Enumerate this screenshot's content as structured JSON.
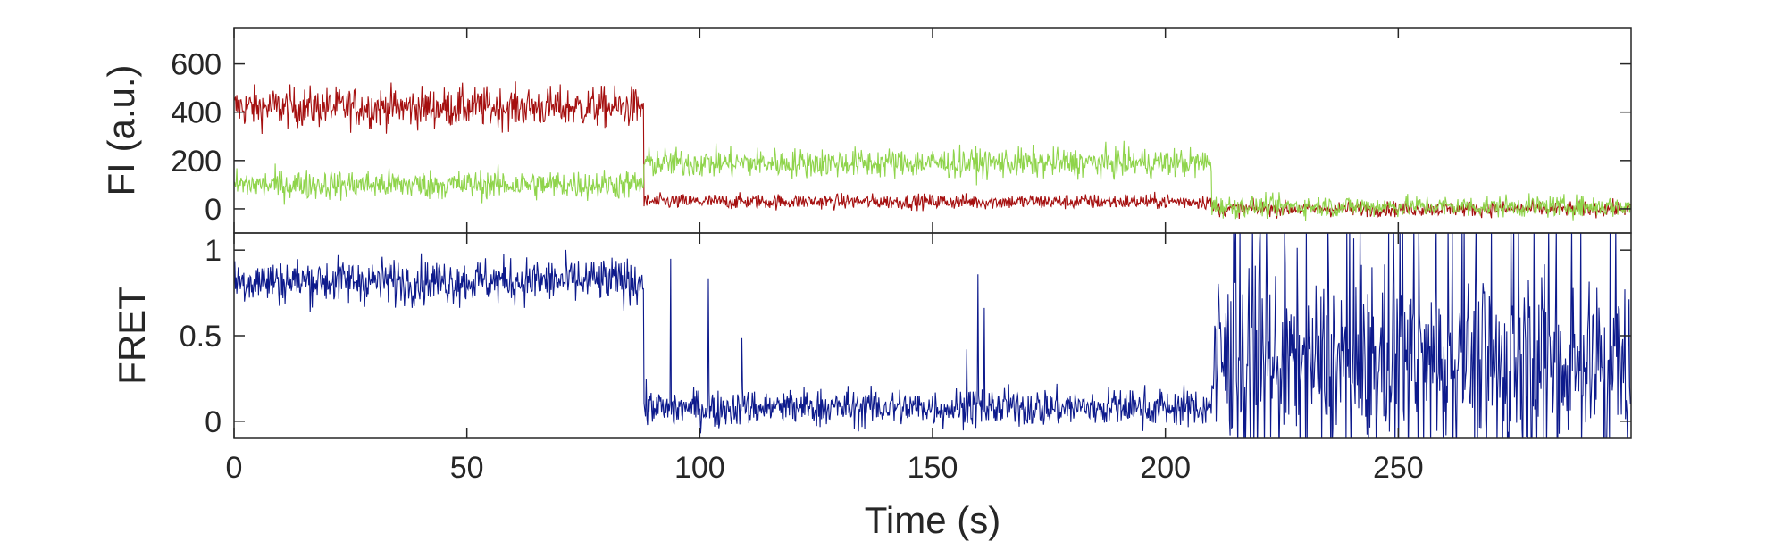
{
  "chart_data": [
    {
      "type": "line",
      "panel": "top",
      "ylabel": "FI (a.u.)",
      "xlim": [
        0,
        300
      ],
      "ylim": [
        -100,
        750
      ],
      "yticks": [
        0,
        200,
        400,
        600
      ],
      "ytick_labels": [
        "0",
        "200",
        "400",
        "600"
      ],
      "series": [
        {
          "color": "#a50f0f",
          "segments": [
            {
              "t_start": 0,
              "t_end": 88,
              "mean": 420,
              "noise": 75
            },
            {
              "t_start": 88,
              "t_end": 210,
              "mean": 30,
              "noise": 28
            },
            {
              "t_start": 210,
              "t_end": 300,
              "mean": 0,
              "noise": 28
            }
          ]
        },
        {
          "color": "#8fd44b",
          "segments": [
            {
              "t_start": 0,
              "t_end": 88,
              "mean": 100,
              "noise": 55
            },
            {
              "t_start": 88,
              "t_end": 210,
              "mean": 190,
              "noise": 55
            },
            {
              "t_start": 210,
              "t_end": 300,
              "mean": 10,
              "noise": 40
            }
          ]
        }
      ]
    },
    {
      "type": "line",
      "panel": "bottom",
      "ylabel": "FRET",
      "xlabel": "Time (s)",
      "xlim": [
        0,
        300
      ],
      "ylim": [
        -0.1,
        1.1
      ],
      "yticks": [
        0,
        0.5,
        1
      ],
      "ytick_labels": [
        "0",
        "0.5",
        "1"
      ],
      "xticks": [
        0,
        50,
        100,
        150,
        200,
        250
      ],
      "xtick_labels": [
        "0",
        "50",
        "100",
        "150",
        "200",
        "250"
      ],
      "series": [
        {
          "color": "#0d1a8c",
          "segments": [
            {
              "t_start": 0,
              "t_end": 88,
              "mean": 0.82,
              "noise": 0.12
            },
            {
              "t_start": 88,
              "t_end": 210,
              "mean": 0.08,
              "noise": 0.1
            },
            {
              "t_start": 210,
              "t_end": 300,
              "mean": 0.35,
              "noise": 0.45
            }
          ]
        }
      ]
    }
  ]
}
